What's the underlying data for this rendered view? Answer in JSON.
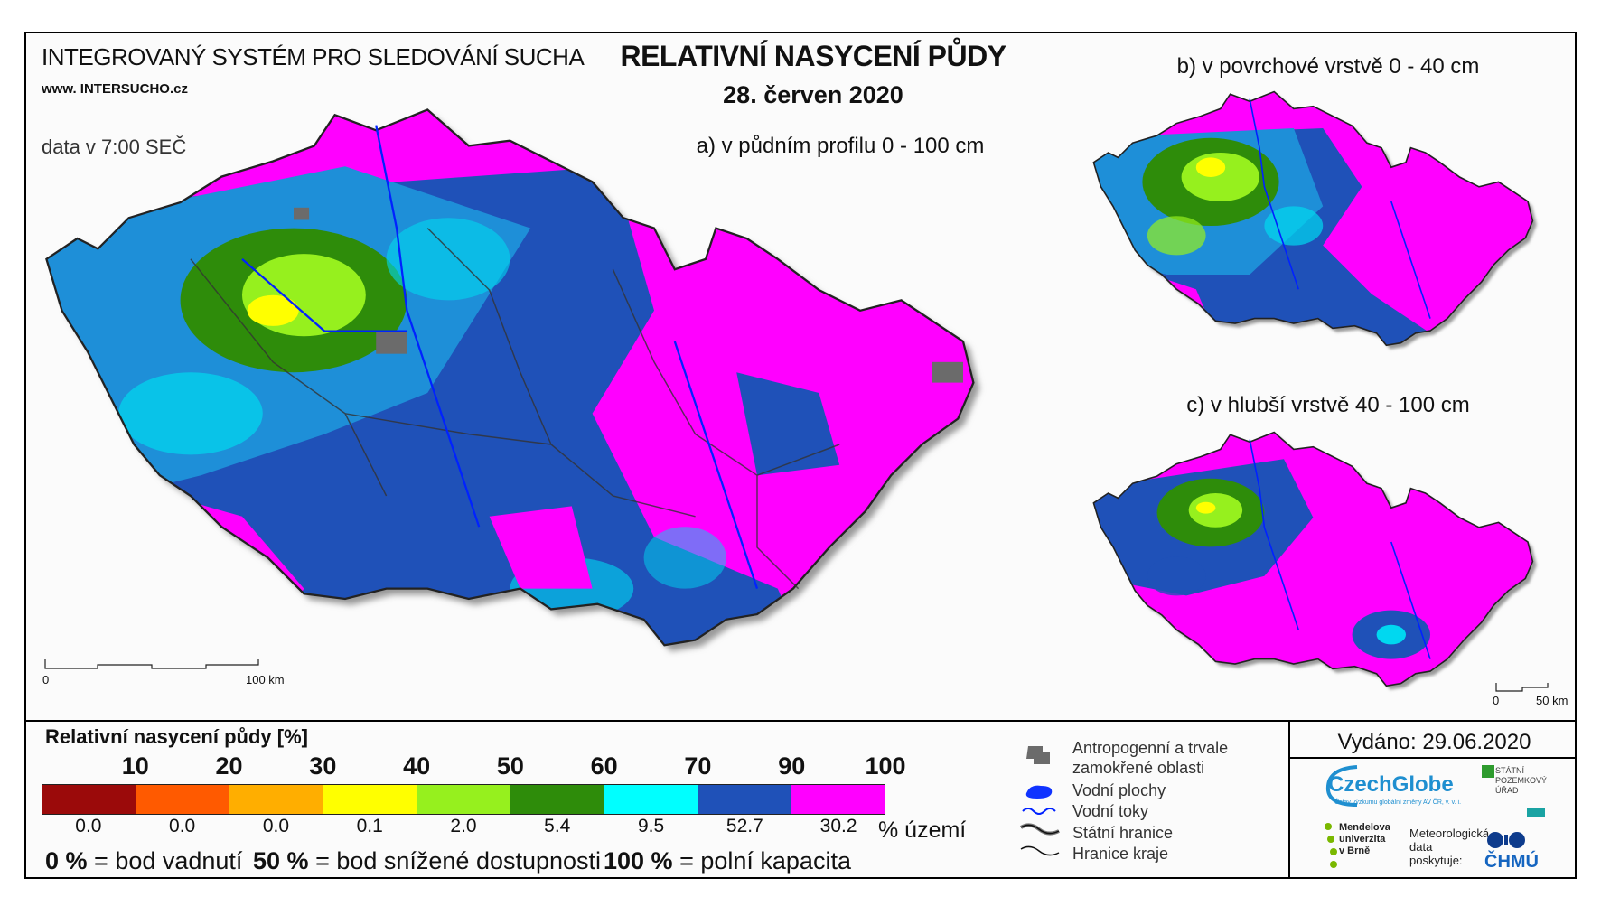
{
  "header": {
    "system_title": "INTEGROVANÝ SYSTÉM PRO SLEDOVÁNÍ SUCHA",
    "website": "www. INTERSUCHO.cz",
    "data_time": "data v 7:00 SEČ",
    "main_title": "RELATIVNÍ NASYCENÍ PŮDY",
    "date": "28. červen 2020"
  },
  "maps": {
    "a_title": "a) v půdním profilu 0 - 100 cm",
    "b_title": "b) v povrchové vrstvě 0 - 40 cm",
    "c_title": "c) v hlubší vrstvě 40 - 100 cm",
    "scale_a": {
      "zero": "0",
      "end": "100 km"
    },
    "scale_c": {
      "zero": "0",
      "end": "50 km"
    }
  },
  "legend": {
    "title": "Relativní nasycení půdy [%]",
    "ticks": [
      "10",
      "20",
      "30",
      "40",
      "50",
      "60",
      "70",
      "90",
      "100"
    ],
    "classes": [
      {
        "color": "#9b0a0a",
        "percent": "0.0"
      },
      {
        "color": "#ff5a00",
        "percent": "0.0"
      },
      {
        "color": "#ffae00",
        "percent": "0.0"
      },
      {
        "color": "#ffff00",
        "percent": "0.1"
      },
      {
        "color": "#96f01e",
        "percent": "2.0"
      },
      {
        "color": "#2e8c0a",
        "percent": "5.4"
      },
      {
        "color": "#00ffff",
        "percent": "9.5"
      },
      {
        "color": "#1f51b8",
        "percent": "52.7"
      },
      {
        "color": "#ff00ff",
        "percent": "30.2"
      }
    ],
    "percent_unit": "% území",
    "definitions": [
      {
        "value": "0 %",
        "text": "= bod vadnutí"
      },
      {
        "value": "50 %",
        "text": "= bod snížené dostupnosti"
      },
      {
        "value": "100 %",
        "text": "= polní kapacita"
      }
    ]
  },
  "symbols": {
    "anthropogenic": [
      "Antropogenní a trvale",
      "zamokřené oblasti"
    ],
    "water_bodies": "Vodní plochy",
    "rivers": "Vodní toky",
    "state_border": "Státní hranice",
    "region_border": "Hranice kraje"
  },
  "footer": {
    "issued": "Vydáno: 29.06.2020",
    "czechglobe": "CzechGlobe",
    "czechglobe_sub": "Ústav výzkumu globální změny AV ČR, v. v. i.",
    "mendel": [
      "Mendelova",
      "univerzita",
      "v Brně"
    ],
    "meteo": [
      "Meteorologická",
      "data",
      "poskytuje:"
    ],
    "chmu": "ČHMÚ",
    "spu": [
      "STÁTNÍ",
      "POZEMKOVÝ",
      "ÚŘAD"
    ]
  },
  "colors": {
    "magenta": "#ff00ff",
    "blue": "#1f51b8",
    "cyan": "#00d8f0",
    "darkgreen": "#2e8c0a",
    "lightgreen": "#96f01e",
    "yellow": "#ffff00",
    "gray": "#6b6b6b",
    "river": "#0022ff",
    "border": "#2a2a2a"
  }
}
